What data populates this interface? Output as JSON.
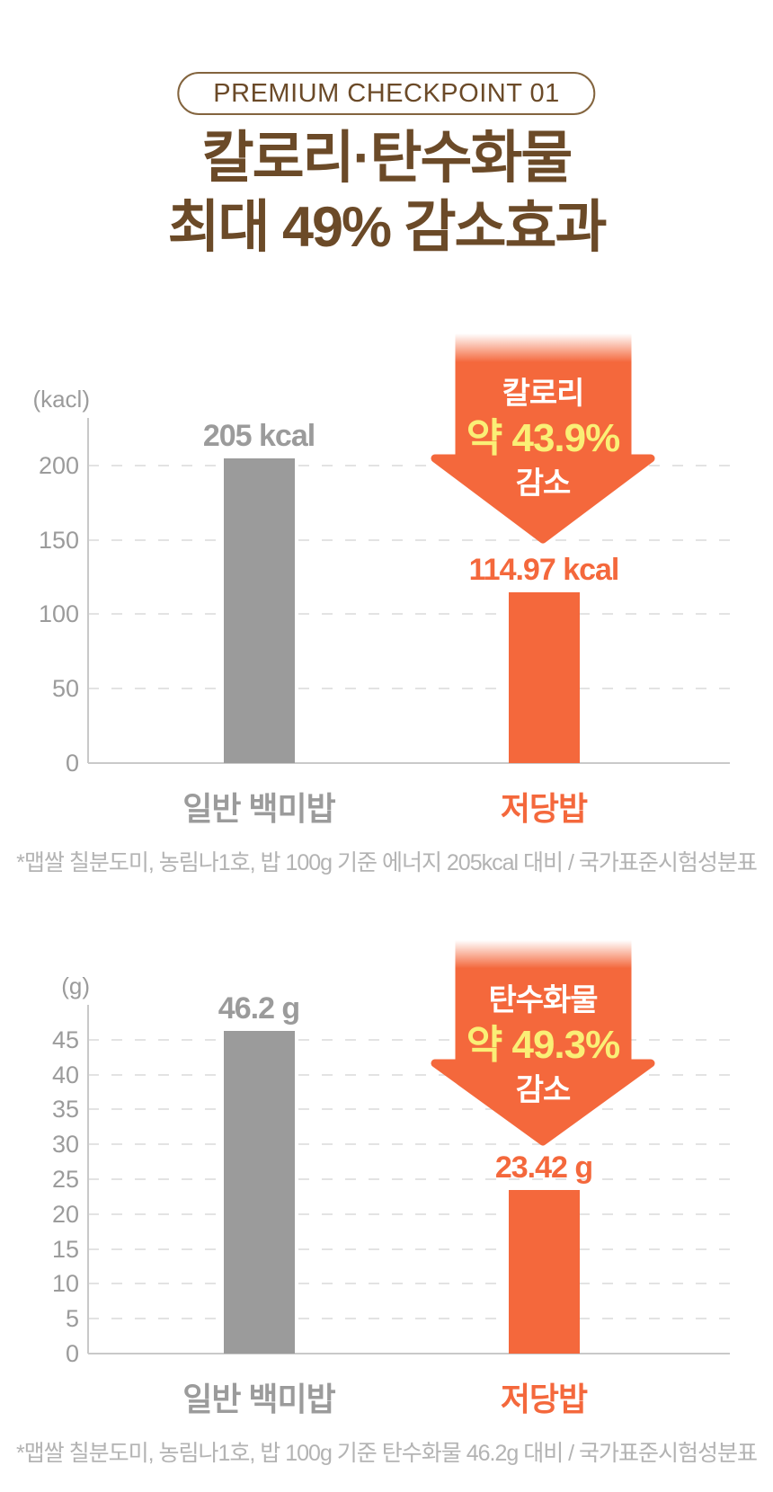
{
  "page": {
    "badge": "PREMIUM CHECKPOINT 01",
    "title_line1": "칼로리·탄수화물",
    "title_line2": "최대 49% 감소효과"
  },
  "colors": {
    "title_brown": "#6B4A28",
    "badge_border": "#83643E",
    "orange": "#F4683C",
    "callout_yellow": "#FAEF76",
    "bar_gray": "#9B9B9B",
    "footnote_gray": "#B3B3B3",
    "gridline": "#E3E3E3",
    "axis_line": "#C9C9C9"
  },
  "chart_data": [
    {
      "type": "bar",
      "unit_label": "(kacl)",
      "categories": [
        "일반 백미밥",
        "저당밥"
      ],
      "values": [
        205,
        114.97
      ],
      "value_labels": [
        "205 kcal",
        "114.97 kcal"
      ],
      "bar_colors": [
        "#9B9B9B",
        "#F4683C"
      ],
      "category_colors": [
        "#9B9B9B",
        "#F4683C"
      ],
      "ticks": [
        0,
        50,
        100,
        150,
        200
      ],
      "ylim": [
        0,
        232
      ],
      "grid": "dashed-horizontal",
      "legend": "none",
      "callout": {
        "line1": "칼로리",
        "line2": "약 43.9%",
        "line3": "감소",
        "shape": "down-arrow",
        "over_category": "저당밥"
      },
      "footnote": "*맵쌀 칠분도미, 농림나1호, 밥 100g 기준 에너지 205kcal 대비 / 국가표준시험성분표"
    },
    {
      "type": "bar",
      "unit_label": "(g)",
      "categories": [
        "일반 백미밥",
        "저당밥"
      ],
      "values": [
        46.2,
        23.42
      ],
      "value_labels": [
        "46.2 g",
        "23.42 g"
      ],
      "bar_colors": [
        "#9B9B9B",
        "#F4683C"
      ],
      "category_colors": [
        "#9B9B9B",
        "#F4683C"
      ],
      "ticks": [
        0,
        5,
        10,
        15,
        20,
        25,
        30,
        35,
        40,
        45
      ],
      "ylim": [
        0,
        50
      ],
      "grid": "dashed-horizontal",
      "legend": "none",
      "callout": {
        "line1": "탄수화물",
        "line2": "약 49.3%",
        "line3": "감소",
        "shape": "down-arrow",
        "over_category": "저당밥"
      },
      "footnote": "*맵쌀 칠분도미, 농림나1호, 밥 100g 기준 탄수화물 46.2g 대비 / 국가표준시험성분표"
    }
  ]
}
